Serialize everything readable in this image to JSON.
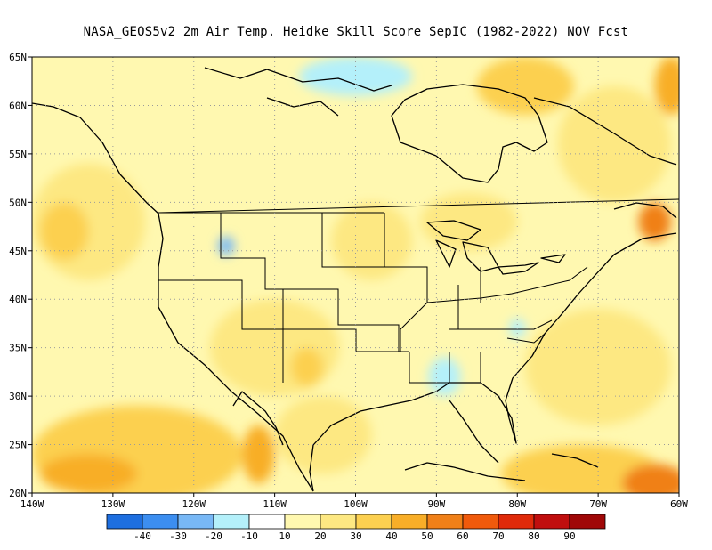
{
  "title": "NASA_GEOS5v2  2m Air Temp. Heidke Skill Score SepIC (1982-2022) NOV Fcst",
  "map": {
    "lon_range": [
      -140,
      -60
    ],
    "lat_range": [
      20,
      65
    ],
    "lon_ticks": [
      {
        "value": -140,
        "label": "140W"
      },
      {
        "value": -130,
        "label": "130W"
      },
      {
        "value": -120,
        "label": "120W"
      },
      {
        "value": -110,
        "label": "110W"
      },
      {
        "value": -100,
        "label": "100W"
      },
      {
        "value": -90,
        "label": "90W"
      },
      {
        "value": -80,
        "label": "80W"
      },
      {
        "value": -70,
        "label": "70W"
      },
      {
        "value": -60,
        "label": "60W"
      }
    ],
    "lat_ticks": [
      {
        "value": 20,
        "label": "20N"
      },
      {
        "value": 25,
        "label": "25N"
      },
      {
        "value": 30,
        "label": "30N"
      },
      {
        "value": 35,
        "label": "35N"
      },
      {
        "value": 40,
        "label": "40N"
      },
      {
        "value": 45,
        "label": "45N"
      },
      {
        "value": 50,
        "label": "50N"
      },
      {
        "value": 55,
        "label": "55N"
      },
      {
        "value": 60,
        "label": "60N"
      },
      {
        "value": 65,
        "label": "65N"
      }
    ],
    "gridlines": "dotted"
  },
  "colorbar": {
    "colors": [
      "#1e6fe0",
      "#3c8ef0",
      "#78b8f6",
      "#b4f0fa",
      "#ffffff",
      "#fff8b0",
      "#fde882",
      "#fcd050",
      "#f8ae28",
      "#f08018",
      "#f05a0c",
      "#e02a0a",
      "#c00e0e",
      "#a00808"
    ],
    "labels": [
      "-40",
      "-30",
      "-20",
      "-10",
      "10",
      "20",
      "30",
      "40",
      "50",
      "60",
      "70",
      "80",
      "90"
    ]
  },
  "regions": [
    {
      "name": "ne-pacific-warm",
      "color": "#fde882",
      "lon": -133,
      "lat": 48,
      "rx": 7,
      "ry": 6
    },
    {
      "name": "ne-pacific-warm-core",
      "color": "#fcd050",
      "lon": -136,
      "lat": 47,
      "rx": 3,
      "ry": 3
    },
    {
      "name": "pacific-south",
      "color": "#fcd050",
      "lon": -127,
      "lat": 24,
      "rx": 13,
      "ry": 5
    },
    {
      "name": "pacific-south-core",
      "color": "#f8ae28",
      "lon": -133,
      "lat": 22,
      "rx": 6,
      "ry": 2
    },
    {
      "name": "baja-warm",
      "color": "#f8ae28",
      "lon": -112,
      "lat": 24,
      "rx": 2,
      "ry": 3
    },
    {
      "name": "southwest-warm",
      "color": "#fde882",
      "lon": -110,
      "lat": 35,
      "rx": 8,
      "ry": 5
    },
    {
      "name": "new-mexico-core",
      "color": "#fcd050",
      "lon": -106,
      "lat": 33,
      "rx": 2,
      "ry": 2
    },
    {
      "name": "mexico-warm",
      "color": "#fde882",
      "lon": -104,
      "lat": 26,
      "rx": 6,
      "ry": 4
    },
    {
      "name": "northern-plains-warm",
      "color": "#fde882",
      "lon": -98,
      "lat": 46,
      "rx": 5,
      "ry": 4
    },
    {
      "name": "great-lakes-warm",
      "color": "#fde882",
      "lon": -86,
      "lat": 48,
      "rx": 6,
      "ry": 3
    },
    {
      "name": "hudson-bay-warm",
      "color": "#fcd050",
      "lon": -79,
      "lat": 62,
      "rx": 6,
      "ry": 3
    },
    {
      "name": "labrador-warm",
      "color": "#fde882",
      "lon": -68,
      "lat": 56,
      "rx": 7,
      "ry": 6
    },
    {
      "name": "far-ne-warm",
      "color": "#f8ae28",
      "lon": -61,
      "lat": 62,
      "rx": 2,
      "ry": 3
    },
    {
      "name": "gulf-stlawrence-warm",
      "color": "#f08018",
      "lon": -63,
      "lat": 48,
      "rx": 2,
      "ry": 2
    },
    {
      "name": "atlantic-warm",
      "color": "#fde882",
      "lon": -70,
      "lat": 33,
      "rx": 9,
      "ry": 6
    },
    {
      "name": "caribbean-warm",
      "color": "#fcd050",
      "lon": -72,
      "lat": 22,
      "rx": 10,
      "ry": 3
    },
    {
      "name": "caribbean-hot",
      "color": "#f08018",
      "lon": -63,
      "lat": 21,
      "rx": 4,
      "ry": 2
    },
    {
      "name": "arctic-cool",
      "color": "#b4f0fa",
      "lon": -100,
      "lat": 63,
      "rx": 7,
      "ry": 2
    },
    {
      "name": "idaho-cool",
      "color": "#78b8f6",
      "lon": -116,
      "lat": 45.5,
      "rx": 1,
      "ry": 1
    },
    {
      "name": "gulf-coast-cool",
      "color": "#b4f0fa",
      "lon": -89,
      "lat": 32,
      "rx": 2,
      "ry": 2
    },
    {
      "name": "carolina-cool",
      "color": "#b4f0fa",
      "lon": -80,
      "lat": 37,
      "rx": 1,
      "ry": 1
    }
  ]
}
